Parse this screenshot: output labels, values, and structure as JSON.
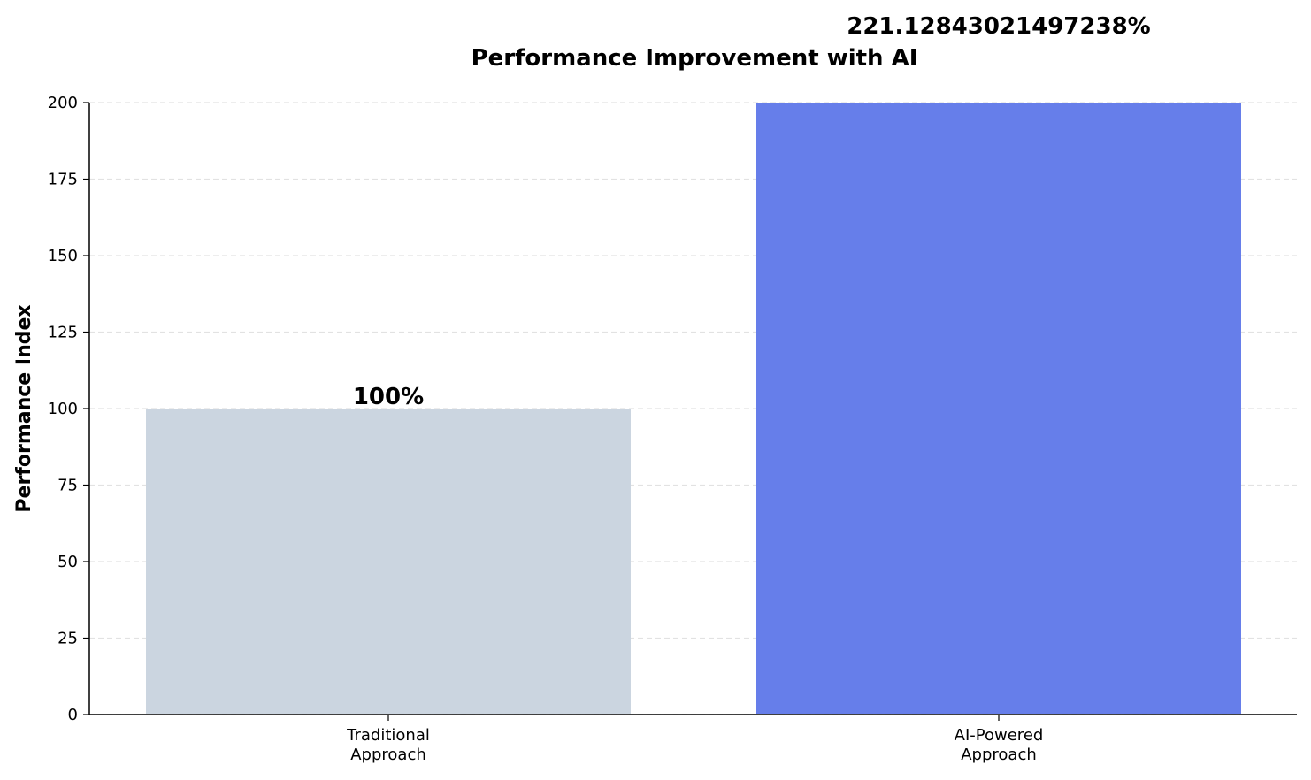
{
  "chart_data": {
    "type": "bar",
    "title": "Performance Improvement with AI",
    "ylabel": "Performance Index",
    "categories": [
      "Traditional\nApproach",
      "AI-Powered\nApproach"
    ],
    "values": [
      100,
      221.12843021497238
    ],
    "value_labels": [
      "100%",
      "221.12843021497238%"
    ],
    "colors": [
      "#cbd5e0",
      "#667eea"
    ],
    "ylim": [
      0,
      200
    ],
    "yticks": [
      0,
      25,
      50,
      75,
      100,
      125,
      150,
      175,
      200
    ],
    "grid": true
  }
}
